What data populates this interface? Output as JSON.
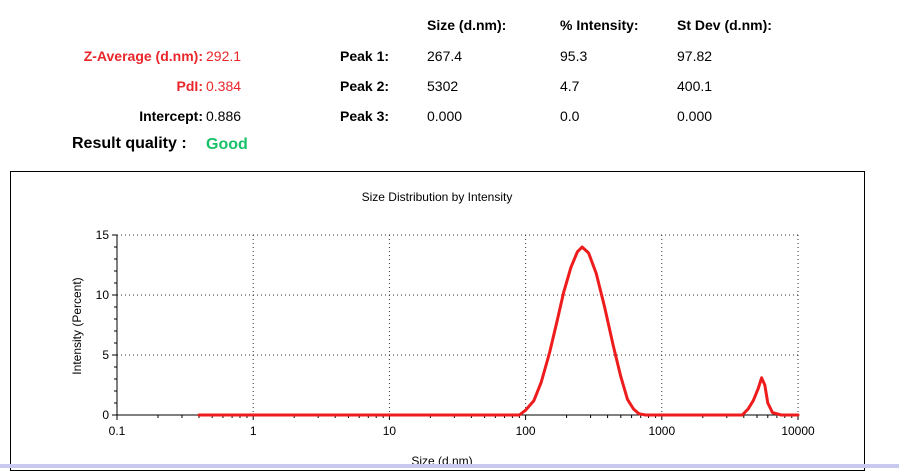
{
  "summary": {
    "z_average_label": "Z-Average (d.nm):",
    "z_average_value": "292.1",
    "pdi_label": "PdI:",
    "pdi_value": "0.384",
    "intercept_label": "Intercept:",
    "intercept_value": "0.886",
    "result_quality_label": "Result quality :",
    "result_quality_value": "Good"
  },
  "peaks_table": {
    "headers": [
      "Size (d.nm):",
      "% Intensity:",
      "St Dev (d.nm):"
    ],
    "rows": [
      {
        "label": "Peak 1:",
        "size": "267.4",
        "intensity": "95.3",
        "stdev": "97.82"
      },
      {
        "label": "Peak 2:",
        "size": "5302",
        "intensity": "4.7",
        "stdev": "400.1"
      },
      {
        "label": "Peak 3:",
        "size": "0.000",
        "intensity": "0.0",
        "stdev": "0.000"
      }
    ]
  },
  "colors": {
    "accent_red": "#e8262b",
    "good_green": "#16c266",
    "line_red": "#ee1c1c"
  },
  "chart_data": {
    "type": "line",
    "title": "Size Distribution by Intensity",
    "xlabel": "Size (d.nm)",
    "ylabel": "Intensity (Percent)",
    "xscale": "log",
    "xlim": [
      0.1,
      10000
    ],
    "ylim": [
      0,
      15
    ],
    "x_ticks": [
      "0.1",
      "1",
      "10",
      "100",
      "1000",
      "10000"
    ],
    "y_ticks": [
      "0",
      "5",
      "10",
      "15"
    ],
    "grid": "dotted",
    "legend": "none",
    "series": [
      {
        "color": "#ee1c1c",
        "x": [
          0.4,
          1,
          10,
          50,
          90,
          100,
          115,
          130,
          150,
          170,
          190,
          215,
          240,
          260,
          290,
          330,
          380,
          440,
          500,
          560,
          620,
          680,
          760,
          1000,
          3000,
          3900,
          4300,
          4700,
          5100,
          5400,
          5700,
          6000,
          6500,
          7500,
          10000
        ],
        "y": [
          0,
          0,
          0,
          0,
          0,
          0.4,
          1.2,
          2.7,
          5.2,
          7.8,
          10.2,
          12.3,
          13.6,
          14.0,
          13.5,
          11.8,
          9.0,
          5.8,
          3.2,
          1.3,
          0.5,
          0.1,
          0,
          0,
          0,
          0,
          0.5,
          1.2,
          2.2,
          3.1,
          2.5,
          1.0,
          0.2,
          0,
          0
        ]
      }
    ]
  }
}
